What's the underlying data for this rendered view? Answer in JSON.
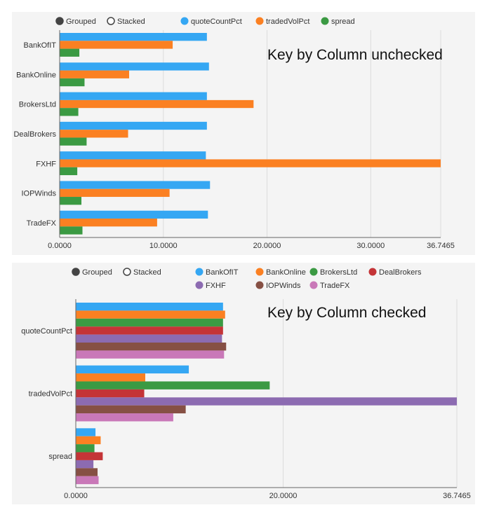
{
  "chart_data": [
    {
      "type": "bar",
      "orientation": "horizontal",
      "mode_options": [
        "Grouped",
        "Stacked"
      ],
      "selected_mode": "Grouped",
      "annotation": "Key by Column unchecked",
      "categories": [
        "BankOfIT",
        "BankOnline",
        "BrokersLtd",
        "DealBrokers",
        "FXHF",
        "IOPWinds",
        "TradeFX"
      ],
      "series": [
        {
          "name": "quoteCountPct",
          "color": "#35a7f3",
          "values": [
            14.2,
            14.4,
            14.2,
            14.2,
            14.1,
            14.5,
            14.3
          ]
        },
        {
          "name": "tradedVolPct",
          "color": "#fb8022",
          "values": [
            10.9,
            6.7,
            18.7,
            6.6,
            36.7465,
            10.6,
            9.4
          ]
        },
        {
          "name": "spread",
          "color": "#3b9a43",
          "values": [
            1.9,
            2.4,
            1.8,
            2.6,
            1.7,
            2.1,
            2.2
          ]
        }
      ],
      "x_ticks": [
        "0.0000",
        "10.0000",
        "20.0000",
        "30.0000",
        "36.7465"
      ],
      "xlim": [
        0,
        36.7465
      ],
      "grid": true,
      "legend_position": "top"
    },
    {
      "type": "bar",
      "orientation": "horizontal",
      "mode_options": [
        "Grouped",
        "Stacked"
      ],
      "selected_mode": "Grouped",
      "annotation": "Key by Column checked",
      "categories": [
        "quoteCountPct",
        "tradedVolPct",
        "spread"
      ],
      "series": [
        {
          "name": "BankOfIT",
          "color": "#35a7f3",
          "values": [
            14.2,
            10.9,
            1.9
          ]
        },
        {
          "name": "BankOnline",
          "color": "#fb8022",
          "values": [
            14.4,
            6.7,
            2.4
          ]
        },
        {
          "name": "BrokersLtd",
          "color": "#3b9a43",
          "values": [
            14.2,
            18.7,
            1.8
          ]
        },
        {
          "name": "DealBrokers",
          "color": "#c43437",
          "values": [
            14.2,
            6.6,
            2.6
          ]
        },
        {
          "name": "FXHF",
          "color": "#8c6bb1",
          "values": [
            14.1,
            36.7465,
            1.7
          ]
        },
        {
          "name": "IOPWinds",
          "color": "#865044",
          "values": [
            14.5,
            10.6,
            2.1
          ]
        },
        {
          "name": "TradeFX",
          "color": "#c978b8",
          "values": [
            14.3,
            9.4,
            2.2
          ]
        }
      ],
      "x_ticks": [
        "0.0000",
        "20.0000",
        "36.7465"
      ],
      "xlim": [
        0,
        36.7465
      ],
      "grid": true,
      "legend_position": "top"
    }
  ]
}
